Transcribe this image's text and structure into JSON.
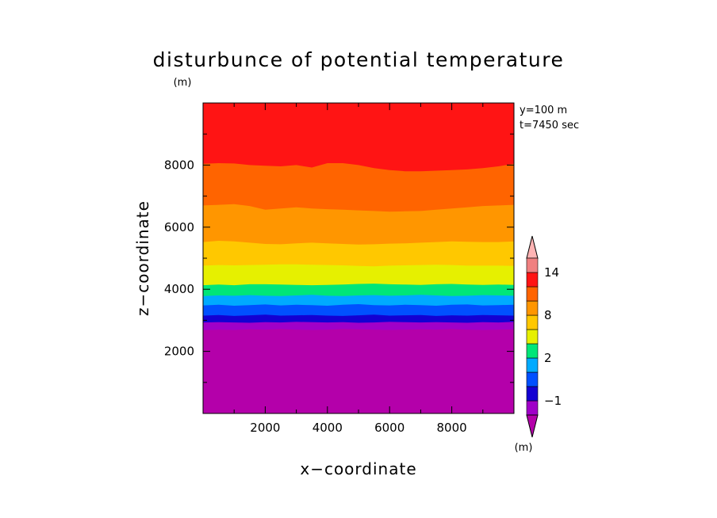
{
  "chart_data": {
    "type": "filled-contour",
    "title": "disturbunce of potential temperature",
    "unit_top": "(m)",
    "xlabel": "x−coordinate",
    "ylabel": "z−coordinate",
    "xlim": [
      0,
      10000
    ],
    "ylim": [
      0,
      10000
    ],
    "x_ticks": [
      2000,
      4000,
      6000,
      8000
    ],
    "y_ticks": [
      2000,
      4000,
      6000,
      8000
    ],
    "annotation": [
      "y=100 m",
      "t=7450 sec"
    ],
    "colorbar": {
      "unit": "(m)",
      "tick_labels": [
        {
          "label": "14",
          "value": 14
        },
        {
          "label": "8",
          "value": 8
        },
        {
          "label": "2",
          "value": 2
        },
        {
          "label": "−1",
          "value": -1
        }
      ],
      "levels": [
        -2,
        -1,
        0,
        1,
        2,
        4,
        6,
        8,
        10,
        12,
        14,
        16
      ],
      "colors": [
        "#a000c8",
        "#1400d2",
        "#0050ff",
        "#00aaff",
        "#00e678",
        "#e6f000",
        "#ffc800",
        "#ff9600",
        "#ff6400",
        "#ff1414",
        "#f08080",
        "#ffb4b4",
        "#b400aa"
      ]
    },
    "bands": [
      {
        "color": "#b400aa",
        "from": "bottom",
        "to": [
          2680,
          2700,
          2690,
          2710,
          2700,
          2720,
          2700,
          2690,
          2700,
          2720,
          2710,
          2700,
          2690,
          2700,
          2710,
          2700,
          2720,
          2700,
          2690,
          2700,
          2710
        ]
      },
      {
        "color": "#a000c8",
        "to": [
          2930,
          2940,
          2930,
          2920,
          2940,
          2930,
          2950,
          2940,
          2930,
          2940,
          2920,
          2930,
          2950,
          2940,
          2930,
          2940,
          2930,
          2920,
          2940,
          2930,
          2950
        ]
      },
      {
        "color": "#1400d2",
        "to": [
          3150,
          3170,
          3140,
          3160,
          3180,
          3150,
          3160,
          3170,
          3150,
          3140,
          3160,
          3180,
          3150,
          3160,
          3170,
          3140,
          3160,
          3150,
          3170,
          3160,
          3150
        ]
      },
      {
        "color": "#0050ff",
        "to": [
          3480,
          3500,
          3470,
          3490,
          3510,
          3480,
          3500,
          3490,
          3470,
          3500,
          3520,
          3490,
          3480,
          3500,
          3490,
          3470,
          3500,
          3510,
          3480,
          3490,
          3500
        ]
      },
      {
        "color": "#00aaff",
        "to": [
          3780,
          3800,
          3790,
          3810,
          3790,
          3780,
          3800,
          3820,
          3790,
          3780,
          3800,
          3810,
          3790,
          3800,
          3820,
          3800,
          3780,
          3790,
          3810,
          3800,
          3790
        ]
      },
      {
        "color": "#00e678",
        "to": [
          4130,
          4150,
          4130,
          4160,
          4160,
          4150,
          4140,
          4130,
          4140,
          4150,
          4170,
          4180,
          4160,
          4150,
          4140,
          4160,
          4170,
          4150,
          4140,
          4150,
          4140
        ]
      },
      {
        "color": "#e6f000",
        "to": [
          4760,
          4780,
          4770,
          4780,
          4790,
          4800,
          4800,
          4790,
          4780,
          4770,
          4750,
          4740,
          4760,
          4770,
          4780,
          4790,
          4780,
          4760,
          4760,
          4760,
          4750
        ]
      },
      {
        "color": "#ffc800",
        "to": [
          5520,
          5560,
          5540,
          5500,
          5460,
          5450,
          5480,
          5500,
          5480,
          5460,
          5440,
          5450,
          5470,
          5480,
          5500,
          5520,
          5540,
          5530,
          5520,
          5520,
          5540
        ]
      },
      {
        "color": "#ff9600",
        "to": [
          6700,
          6720,
          6740,
          6680,
          6560,
          6600,
          6640,
          6600,
          6580,
          6560,
          6540,
          6520,
          6500,
          6510,
          6520,
          6560,
          6600,
          6640,
          6680,
          6700,
          6720
        ]
      },
      {
        "color": "#ff6400",
        "to": [
          8040,
          8060,
          8050,
          8000,
          7980,
          7960,
          8000,
          7920,
          8060,
          8060,
          8000,
          7900,
          7840,
          7800,
          7800,
          7820,
          7840,
          7860,
          7900,
          7960,
          8040
        ]
      },
      {
        "color": "#ff1414",
        "to": "top"
      }
    ]
  }
}
